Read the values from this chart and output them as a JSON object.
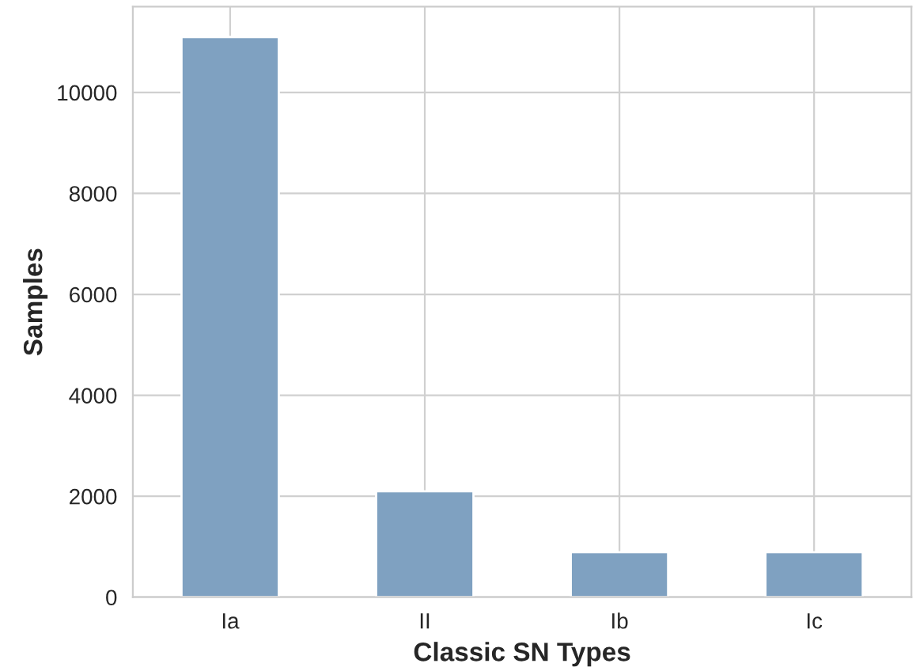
{
  "chart_data": {
    "type": "bar",
    "xlabel": "Classic SN Types",
    "ylabel": "Samples",
    "categories": [
      "Ia",
      "II",
      "Ib",
      "Ic"
    ],
    "values": [
      11100,
      2100,
      890,
      890
    ],
    "color": "#7fa1c1",
    "ylim": [
      0,
      11700
    ],
    "yticks": [
      0,
      2000,
      4000,
      6000,
      8000,
      10000
    ],
    "grid": true
  }
}
